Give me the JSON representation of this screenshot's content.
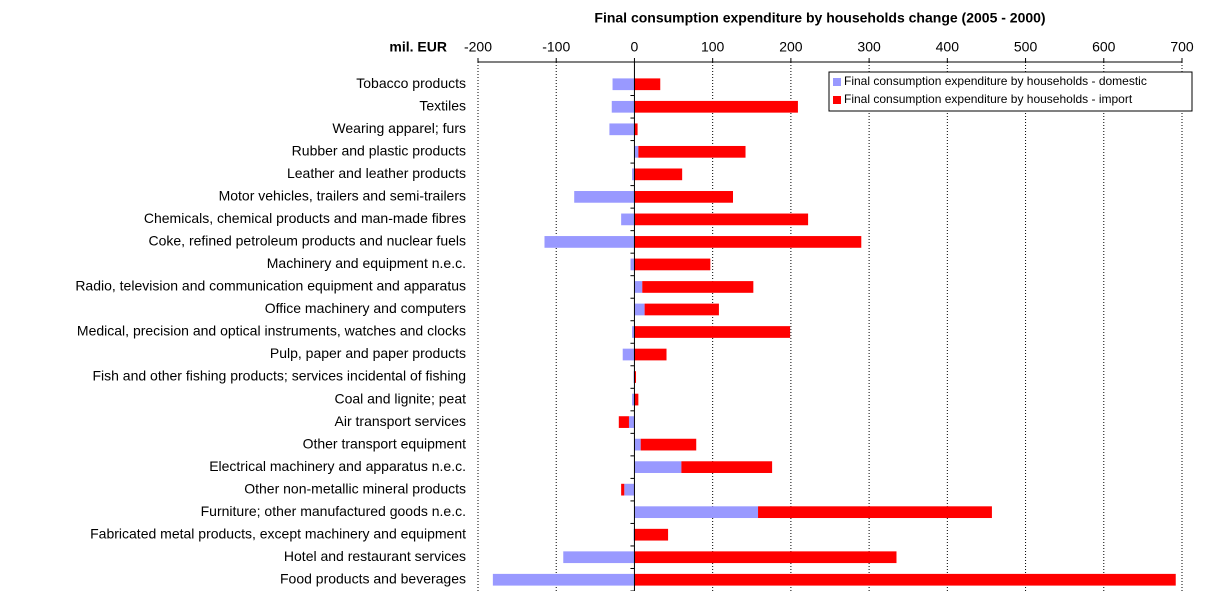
{
  "chart_data": {
    "type": "stacked-hbar",
    "title": "Final consumption expenditure by households change (2005 - 2000)",
    "unit_label": "mil. EUR",
    "categories": [
      "Tobacco products",
      "Textiles",
      "Wearing apparel; furs",
      "Rubber and plastic products",
      "Leather and leather products",
      "Motor vehicles, trailers and semi-trailers",
      "Chemicals, chemical products and man-made fibres",
      "Coke, refined petroleum products and nuclear fuels",
      "Machinery and equipment n.e.c.",
      "Radio, television and communication equipment and apparatus",
      "Office machinery and computers",
      "Medical, precision and optical instruments, watches and clocks",
      "Pulp, paper and paper products",
      "Fish and other fishing products; services incidental of fishing",
      "Coal and lignite; peat",
      "Air transport services",
      "Other transport equipment",
      "Electrical machinery and apparatus n.e.c.",
      "Other non-metallic mineral products",
      "Furniture; other manufactured goods n.e.c.",
      "Fabricated metal products, except machinery and equipment",
      "Hotel and restaurant services",
      "Food products and beverages"
    ],
    "series": [
      {
        "name": "Final consumption expenditure by households - domestic",
        "color": "#9999ff",
        "values": [
          -28,
          -29,
          -32,
          5,
          -3,
          -77,
          -17,
          -115,
          -5,
          10,
          13,
          -3,
          -15,
          -1,
          -3,
          -7,
          8,
          60,
          -13,
          158,
          -1,
          -91,
          -181
        ]
      },
      {
        "name": "Final consumption expenditure by households - import",
        "color": "#ff0000",
        "values": [
          33,
          209,
          4,
          137,
          61,
          126,
          222,
          290,
          97,
          142,
          95,
          199,
          41,
          2,
          5,
          -13,
          71,
          116,
          -4,
          299,
          43,
          335,
          692
        ]
      }
    ],
    "xlim": [
      -200,
      700
    ],
    "xticks": [
      -200,
      -100,
      0,
      100,
      200,
      300,
      400,
      500,
      600,
      700
    ],
    "grid": true,
    "legend": "top-right"
  }
}
